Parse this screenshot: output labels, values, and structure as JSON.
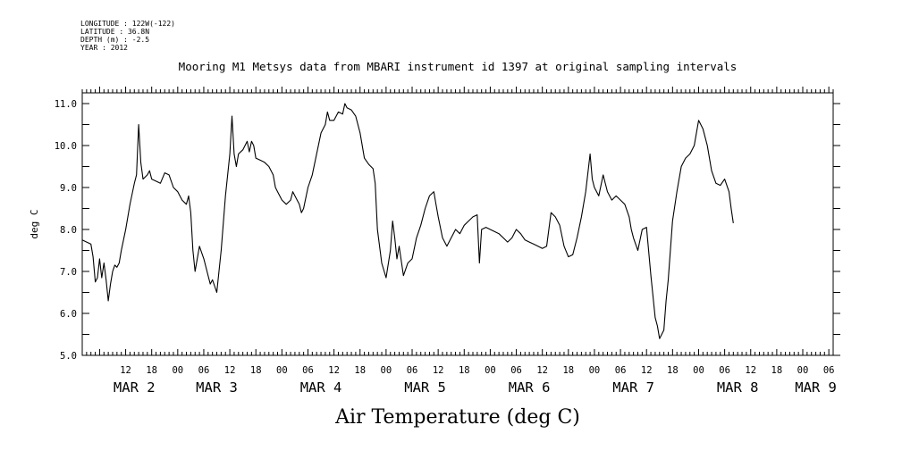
{
  "metadata": {
    "longitude": "LONGITUDE : 122W(-122)",
    "latitude": "LATITUDE : 36.8N",
    "depth": "DEPTH (m) : -2.5",
    "year": "YEAR : 2012"
  },
  "chart_data": {
    "type": "line",
    "title": "Mooring M1 Metsys data from MBARI instrument id 1397 at original sampling intervals",
    "xlabel": "Air Temperature (deg C)",
    "ylabel": "deg C",
    "ylim": [
      5.0,
      11.0
    ],
    "xlim_hours": [
      -22,
      151
    ],
    "y_ticks": [
      "5.0",
      "6.0",
      "7.0",
      "8.0",
      "9.0",
      "10.0",
      "11.0"
    ],
    "x_hour_ticks": [
      {
        "h": -12,
        "label": "12"
      },
      {
        "h": -6,
        "label": "18"
      },
      {
        "h": 0,
        "label": "00"
      },
      {
        "h": 6,
        "label": "06"
      },
      {
        "h": 12,
        "label": "12"
      },
      {
        "h": 18,
        "label": "18"
      },
      {
        "h": 24,
        "label": "00"
      },
      {
        "h": 30,
        "label": "06"
      },
      {
        "h": 36,
        "label": "12"
      },
      {
        "h": 42,
        "label": "18"
      },
      {
        "h": 48,
        "label": "00"
      },
      {
        "h": 54,
        "label": "06"
      },
      {
        "h": 60,
        "label": "12"
      },
      {
        "h": 66,
        "label": "18"
      },
      {
        "h": 72,
        "label": "00"
      },
      {
        "h": 78,
        "label": "06"
      },
      {
        "h": 84,
        "label": "12"
      },
      {
        "h": 90,
        "label": "18"
      },
      {
        "h": 96,
        "label": "00"
      },
      {
        "h": 102,
        "label": "06"
      },
      {
        "h": 108,
        "label": "12"
      },
      {
        "h": 114,
        "label": "18"
      },
      {
        "h": 120,
        "label": "00"
      },
      {
        "h": 126,
        "label": "06"
      },
      {
        "h": 132,
        "label": "12"
      },
      {
        "h": 138,
        "label": "18"
      },
      {
        "h": 144,
        "label": "00"
      },
      {
        "h": 150,
        "label": "06"
      }
    ],
    "date_labels": [
      {
        "h": -10,
        "label": "MAR 2"
      },
      {
        "h": 9,
        "label": "MAR 3"
      },
      {
        "h": 33,
        "label": "MAR 4"
      },
      {
        "h": 57,
        "label": "MAR 5"
      },
      {
        "h": 81,
        "label": "MAR 6"
      },
      {
        "h": 105,
        "label": "MAR 7"
      },
      {
        "h": 129,
        "label": "MAR 8"
      },
      {
        "h": 147,
        "label": "MAR 9"
      }
    ],
    "series": [
      {
        "color": "#000000",
        "points": [
          [
            -22.0,
            7.75
          ],
          [
            -21.0,
            7.7
          ],
          [
            -20.0,
            7.65
          ],
          [
            -19.5,
            7.35
          ],
          [
            -19.0,
            6.75
          ],
          [
            -18.5,
            6.85
          ],
          [
            -18.0,
            7.3
          ],
          [
            -17.5,
            6.85
          ],
          [
            -17.0,
            7.2
          ],
          [
            -16.5,
            6.8
          ],
          [
            -16.0,
            6.3
          ],
          [
            -15.5,
            6.7
          ],
          [
            -15.0,
            7.0
          ],
          [
            -14.5,
            7.15
          ],
          [
            -14.0,
            7.1
          ],
          [
            -13.5,
            7.2
          ],
          [
            -13.0,
            7.5
          ],
          [
            -12.0,
            8.0
          ],
          [
            -11.0,
            8.6
          ],
          [
            -10.0,
            9.1
          ],
          [
            -9.5,
            9.3
          ],
          [
            -9.0,
            10.5
          ],
          [
            -8.5,
            9.6
          ],
          [
            -8.0,
            9.2
          ],
          [
            -7.0,
            9.3
          ],
          [
            -6.5,
            9.4
          ],
          [
            -6.0,
            9.2
          ],
          [
            -5.0,
            9.15
          ],
          [
            -4.0,
            9.1
          ],
          [
            -3.0,
            9.35
          ],
          [
            -2.0,
            9.3
          ],
          [
            -1.0,
            9.0
          ],
          [
            0.0,
            8.9
          ],
          [
            1.0,
            8.7
          ],
          [
            2.0,
            8.6
          ],
          [
            2.5,
            8.8
          ],
          [
            3.0,
            8.4
          ],
          [
            3.5,
            7.5
          ],
          [
            4.0,
            7.0
          ],
          [
            5.0,
            7.6
          ],
          [
            6.0,
            7.3
          ],
          [
            7.0,
            6.9
          ],
          [
            7.5,
            6.7
          ],
          [
            8.0,
            6.8
          ],
          [
            9.0,
            6.5
          ],
          [
            10.0,
            7.5
          ],
          [
            11.0,
            8.8
          ],
          [
            12.0,
            9.8
          ],
          [
            12.5,
            10.7
          ],
          [
            13.0,
            9.8
          ],
          [
            13.5,
            9.5
          ],
          [
            14.0,
            9.8
          ],
          [
            15.0,
            9.9
          ],
          [
            16.0,
            10.1
          ],
          [
            16.5,
            9.85
          ],
          [
            17.0,
            10.1
          ],
          [
            17.5,
            10.0
          ],
          [
            18.0,
            9.7
          ],
          [
            19.0,
            9.65
          ],
          [
            20.0,
            9.6
          ],
          [
            21.0,
            9.5
          ],
          [
            22.0,
            9.3
          ],
          [
            22.5,
            9.0
          ],
          [
            23.0,
            8.9
          ],
          [
            24.0,
            8.7
          ],
          [
            25.0,
            8.6
          ],
          [
            26.0,
            8.7
          ],
          [
            26.5,
            8.9
          ],
          [
            27.0,
            8.8
          ],
          [
            28.0,
            8.6
          ],
          [
            28.5,
            8.4
          ],
          [
            29.0,
            8.5
          ],
          [
            30.0,
            9.0
          ],
          [
            31.0,
            9.3
          ],
          [
            32.0,
            9.8
          ],
          [
            33.0,
            10.3
          ],
          [
            34.0,
            10.5
          ],
          [
            34.5,
            10.8
          ],
          [
            35.0,
            10.6
          ],
          [
            36.0,
            10.6
          ],
          [
            37.0,
            10.8
          ],
          [
            38.0,
            10.75
          ],
          [
            38.5,
            11.0
          ],
          [
            39.0,
            10.9
          ],
          [
            40.0,
            10.85
          ],
          [
            41.0,
            10.7
          ],
          [
            42.0,
            10.3
          ],
          [
            43.0,
            9.7
          ],
          [
            44.0,
            9.55
          ],
          [
            45.0,
            9.45
          ],
          [
            45.5,
            9.1
          ],
          [
            46.0,
            8.0
          ],
          [
            47.0,
            7.2
          ],
          [
            48.0,
            6.85
          ],
          [
            49.0,
            7.5
          ],
          [
            49.5,
            8.2
          ],
          [
            50.0,
            7.8
          ],
          [
            50.5,
            7.3
          ],
          [
            51.0,
            7.6
          ],
          [
            52.0,
            6.9
          ],
          [
            53.0,
            7.2
          ],
          [
            54.0,
            7.3
          ],
          [
            55.0,
            7.8
          ],
          [
            56.0,
            8.1
          ],
          [
            57.0,
            8.5
          ],
          [
            58.0,
            8.8
          ],
          [
            59.0,
            8.9
          ],
          [
            59.5,
            8.6
          ],
          [
            60.0,
            8.3
          ],
          [
            61.0,
            7.8
          ],
          [
            62.0,
            7.6
          ],
          [
            63.0,
            7.8
          ],
          [
            64.0,
            8.0
          ],
          [
            65.0,
            7.9
          ],
          [
            66.0,
            8.1
          ],
          [
            67.0,
            8.2
          ],
          [
            68.0,
            8.3
          ],
          [
            69.0,
            8.35
          ],
          [
            69.5,
            7.2
          ],
          [
            70.0,
            8.0
          ],
          [
            71.0,
            8.05
          ],
          [
            72.0,
            8.0
          ],
          [
            73.0,
            7.95
          ],
          [
            74.0,
            7.9
          ],
          [
            75.0,
            7.8
          ],
          [
            76.0,
            7.7
          ],
          [
            77.0,
            7.8
          ],
          [
            78.0,
            8.0
          ],
          [
            79.0,
            7.9
          ],
          [
            80.0,
            7.75
          ],
          [
            81.0,
            7.7
          ],
          [
            82.0,
            7.65
          ],
          [
            83.0,
            7.6
          ],
          [
            84.0,
            7.55
          ],
          [
            85.0,
            7.6
          ],
          [
            86.0,
            8.4
          ],
          [
            87.0,
            8.3
          ],
          [
            88.0,
            8.1
          ],
          [
            89.0,
            7.6
          ],
          [
            90.0,
            7.35
          ],
          [
            91.0,
            7.4
          ],
          [
            92.0,
            7.8
          ],
          [
            93.0,
            8.3
          ],
          [
            94.0,
            8.9
          ],
          [
            95.0,
            9.8
          ],
          [
            95.5,
            9.2
          ],
          [
            96.0,
            9.0
          ],
          [
            97.0,
            8.8
          ],
          [
            98.0,
            9.3
          ],
          [
            99.0,
            8.9
          ],
          [
            100.0,
            8.7
          ],
          [
            101.0,
            8.8
          ],
          [
            102.0,
            8.7
          ],
          [
            103.0,
            8.6
          ],
          [
            104.0,
            8.3
          ],
          [
            104.5,
            8.0
          ],
          [
            105.0,
            7.8
          ],
          [
            106.0,
            7.5
          ],
          [
            107.0,
            8.0
          ],
          [
            108.0,
            8.05
          ],
          [
            109.0,
            6.9
          ],
          [
            110.0,
            5.9
          ],
          [
            110.5,
            5.7
          ],
          [
            111.0,
            5.4
          ],
          [
            112.0,
            5.6
          ],
          [
            112.5,
            6.3
          ],
          [
            113.0,
            6.8
          ],
          [
            114.0,
            8.2
          ],
          [
            115.0,
            8.9
          ],
          [
            116.0,
            9.5
          ],
          [
            117.0,
            9.7
          ],
          [
            118.0,
            9.8
          ],
          [
            119.0,
            10.0
          ],
          [
            120.0,
            10.6
          ],
          [
            121.0,
            10.4
          ],
          [
            122.0,
            10.0
          ],
          [
            123.0,
            9.4
          ],
          [
            124.0,
            9.1
          ],
          [
            125.0,
            9.05
          ],
          [
            126.0,
            9.2
          ],
          [
            127.0,
            8.9
          ],
          [
            127.5,
            8.5
          ],
          [
            128.0,
            8.15
          ]
        ]
      }
    ]
  }
}
